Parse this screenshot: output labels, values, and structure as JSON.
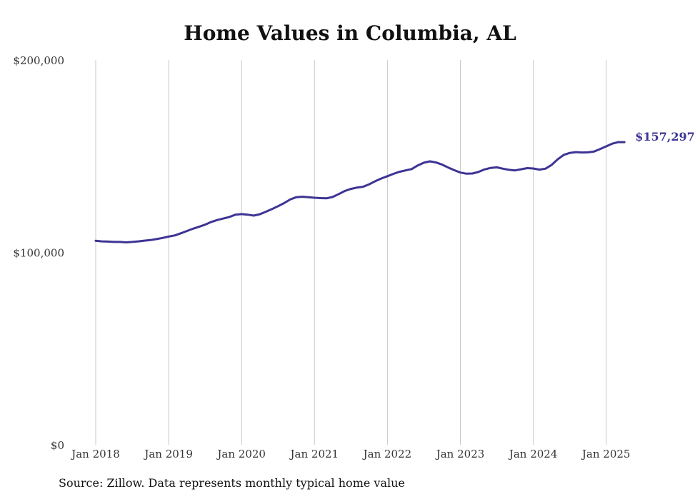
{
  "chart_data": {
    "type": "line",
    "title": "Home Values in Columbia, AL",
    "xlabel": "",
    "ylabel": "",
    "ylim": [
      0,
      200000
    ],
    "yticks": [
      {
        "value": 0,
        "label": "$0"
      },
      {
        "value": 100000,
        "label": "$100,000"
      },
      {
        "value": 200000,
        "label": "$200,000"
      }
    ],
    "xticks": [
      {
        "value": "2018-01",
        "label": "Jan 2018"
      },
      {
        "value": "2019-01",
        "label": "Jan 2019"
      },
      {
        "value": "2020-01",
        "label": "Jan 2020"
      },
      {
        "value": "2021-01",
        "label": "Jan 2021"
      },
      {
        "value": "2022-01",
        "label": "Jan 2022"
      },
      {
        "value": "2023-01",
        "label": "Jan 2023"
      },
      {
        "value": "2024-01",
        "label": "Jan 2024"
      },
      {
        "value": "2025-01",
        "label": "Jan 2025"
      }
    ],
    "grid": "vertical",
    "line_color": "#3d3494",
    "end_label": "$157,297",
    "series": [
      {
        "x": [
          "2018-01",
          "2018-02",
          "2018-03",
          "2018-04",
          "2018-05",
          "2018-06",
          "2018-07",
          "2018-08",
          "2018-09",
          "2018-10",
          "2018-11",
          "2018-12",
          "2019-01",
          "2019-02",
          "2019-03",
          "2019-04",
          "2019-05",
          "2019-06",
          "2019-07",
          "2019-08",
          "2019-09",
          "2019-10",
          "2019-11",
          "2019-12",
          "2020-01",
          "2020-02",
          "2020-03",
          "2020-04",
          "2020-05",
          "2020-06",
          "2020-07",
          "2020-08",
          "2020-09",
          "2020-10",
          "2020-11",
          "2020-12",
          "2021-01",
          "2021-02",
          "2021-03",
          "2021-04",
          "2021-05",
          "2021-06",
          "2021-07",
          "2021-08",
          "2021-09",
          "2021-10",
          "2021-11",
          "2021-12",
          "2022-01",
          "2022-02",
          "2022-03",
          "2022-04",
          "2022-05",
          "2022-06",
          "2022-07",
          "2022-08",
          "2022-09",
          "2022-10",
          "2022-11",
          "2022-12",
          "2023-01",
          "2023-02",
          "2023-03",
          "2023-04",
          "2023-05",
          "2023-06",
          "2023-07",
          "2023-08",
          "2023-09",
          "2023-10",
          "2023-11",
          "2023-12",
          "2024-01",
          "2024-02",
          "2024-03",
          "2024-04",
          "2024-05",
          "2024-06",
          "2024-07",
          "2024-08",
          "2024-09",
          "2024-10",
          "2024-11",
          "2024-12",
          "2025-01",
          "2025-02",
          "2025-03",
          "2025-04"
        ],
        "values": [
          106000,
          105700,
          105600,
          105400,
          105400,
          105200,
          105400,
          105700,
          106100,
          106400,
          106900,
          107500,
          108200,
          108800,
          109900,
          111100,
          112300,
          113300,
          114400,
          115800,
          116800,
          117600,
          118400,
          119600,
          119900,
          119600,
          119100,
          119800,
          121100,
          122500,
          124000,
          125600,
          127500,
          128700,
          128900,
          128700,
          128400,
          128200,
          128100,
          128800,
          130300,
          131900,
          133000,
          133700,
          134100,
          135400,
          137000,
          138400,
          139600,
          140800,
          141900,
          142600,
          143300,
          145200,
          146600,
          147300,
          146700,
          145600,
          144100,
          142700,
          141500,
          140900,
          141000,
          141800,
          143100,
          143900,
          144200,
          143500,
          142900,
          142600,
          143200,
          143800,
          143600,
          143000,
          143500,
          145400,
          148300,
          150600,
          151700,
          152100,
          151900,
          152000,
          152400,
          153700,
          155100,
          156500,
          157300,
          157297
        ]
      }
    ]
  },
  "source_text": "Source: Zillow. Data represents monthly typical home value"
}
